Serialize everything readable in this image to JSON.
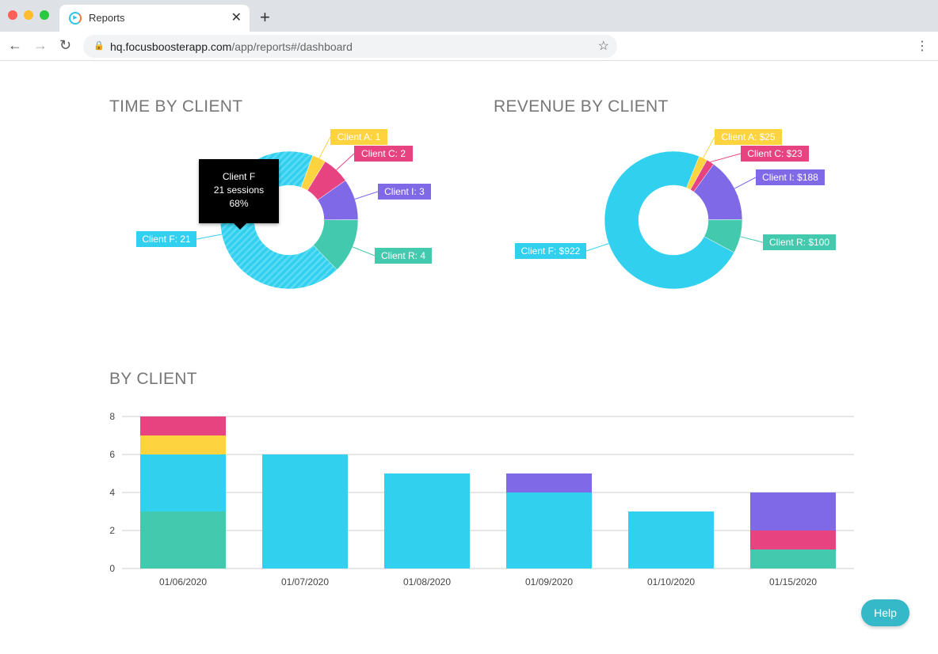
{
  "browser": {
    "tab_title": "Reports",
    "url_host": "hq.focusboosterapp.com",
    "url_path": "/app/reports#/dashboard"
  },
  "colors": {
    "Client F": "#31d0ef",
    "Client A": "#fdd33f",
    "Client C": "#e84381",
    "Client I": "#7f69e6",
    "Client R": "#43c9ae"
  },
  "time_title": "TIME BY CLIENT",
  "revenue_title": "REVENUE BY CLIENT",
  "bar_title": "BY CLIENT",
  "tooltip": {
    "name": "Client F",
    "sessions": "21 sessions",
    "percent": "68%"
  },
  "help_label": "Help",
  "chart_data": [
    {
      "type": "pie",
      "title": "TIME BY CLIENT",
      "donut": true,
      "slices": [
        {
          "name": "Client A",
          "value": 1,
          "label": "Client A: 1"
        },
        {
          "name": "Client C",
          "value": 2,
          "label": "Client C: 2"
        },
        {
          "name": "Client I",
          "value": 3,
          "label": "Client I: 3"
        },
        {
          "name": "Client R",
          "value": 4,
          "label": "Client R: 4"
        },
        {
          "name": "Client F",
          "value": 21,
          "label": "Client F: 21"
        }
      ]
    },
    {
      "type": "pie",
      "title": "REVENUE BY CLIENT",
      "donut": true,
      "slices": [
        {
          "name": "Client A",
          "value": 25,
          "label": "Client A: $25"
        },
        {
          "name": "Client C",
          "value": 23,
          "label": "Client C: $23"
        },
        {
          "name": "Client I",
          "value": 188,
          "label": "Client I: $188"
        },
        {
          "name": "Client R",
          "value": 100,
          "label": "Client R: $100"
        },
        {
          "name": "Client F",
          "value": 922,
          "label": "Client F: $922"
        }
      ]
    },
    {
      "type": "bar",
      "stacked": true,
      "title": "BY CLIENT",
      "ylim": [
        0,
        8
      ],
      "yticks": [
        0,
        2,
        4,
        6,
        8
      ],
      "grid": true,
      "categories": [
        "01/06/2020",
        "01/07/2020",
        "01/08/2020",
        "01/09/2020",
        "01/10/2020",
        "01/15/2020"
      ],
      "series": [
        {
          "client": "Client R",
          "values": [
            3,
            0,
            0,
            0,
            0,
            1
          ]
        },
        {
          "client": "Client F",
          "values": [
            3,
            6,
            5,
            4,
            3,
            0
          ]
        },
        {
          "client": "Client A",
          "values": [
            1,
            0,
            0,
            0,
            0,
            0
          ]
        },
        {
          "client": "Client C",
          "values": [
            1,
            0,
            0,
            0,
            0,
            1
          ]
        },
        {
          "client": "Client I",
          "values": [
            0,
            0,
            0,
            1,
            0,
            2
          ]
        }
      ]
    }
  ]
}
